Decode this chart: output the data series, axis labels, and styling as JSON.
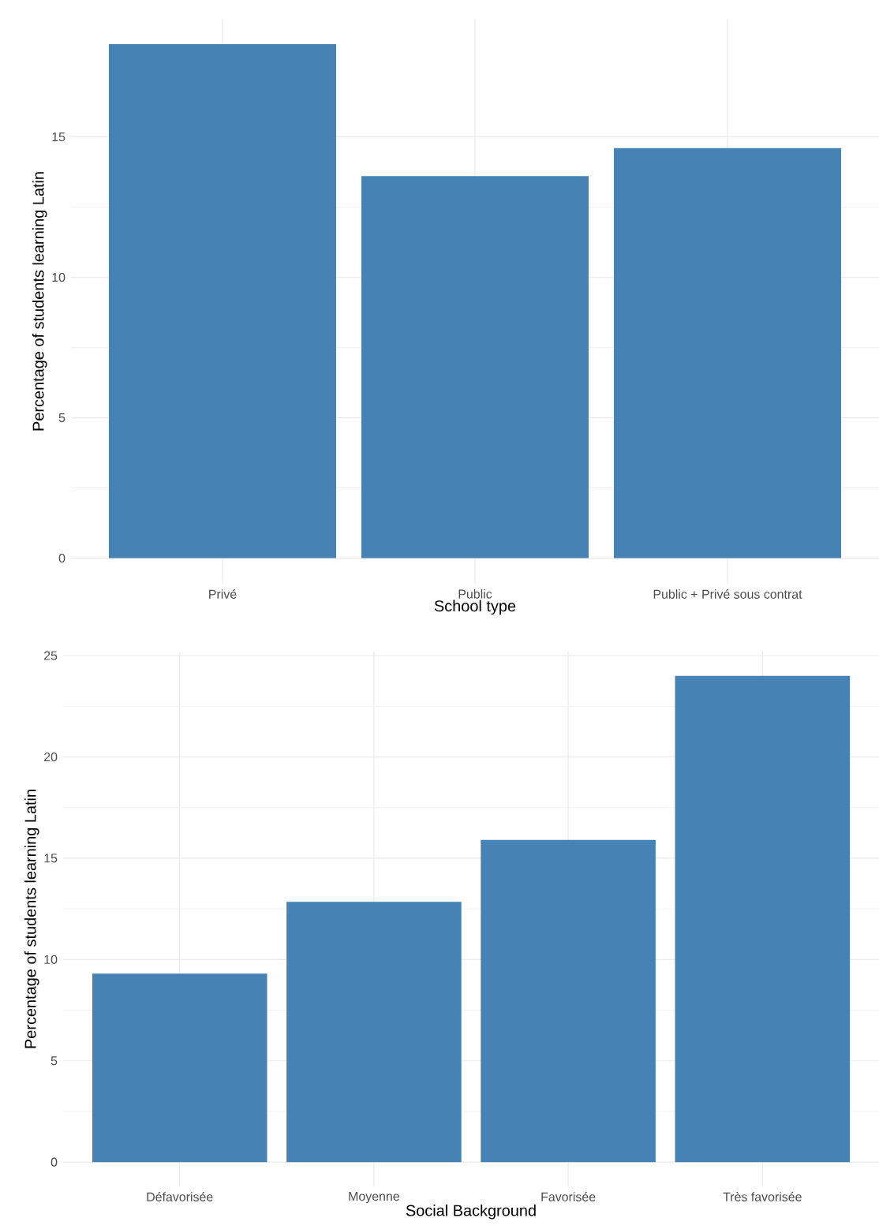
{
  "chart_data": [
    {
      "type": "bar",
      "xlabel": "School type",
      "ylabel": "Percentage of students learning Latin",
      "categories": [
        "Privé",
        "Public",
        "Public + Privé sous contrat"
      ],
      "values": [
        18.3,
        13.6,
        14.6
      ],
      "color": "#4682b4",
      "ylim": [
        -0.91,
        19.2
      ],
      "yticks": [
        0,
        5,
        10,
        15
      ],
      "grid": true
    },
    {
      "type": "bar",
      "xlabel": "Social Background",
      "ylabel": "Percentage of students learning Latin",
      "categories": [
        "Défavorisée",
        "Moyenne",
        "Favorisée",
        "Très favorisée"
      ],
      "values": [
        9.3,
        12.85,
        15.9,
        24.0
      ],
      "color": "#4682b4",
      "ylim": [
        -1.2,
        25.2
      ],
      "yticks": [
        0,
        5,
        10,
        15,
        20,
        25
      ],
      "grid": true
    }
  ]
}
